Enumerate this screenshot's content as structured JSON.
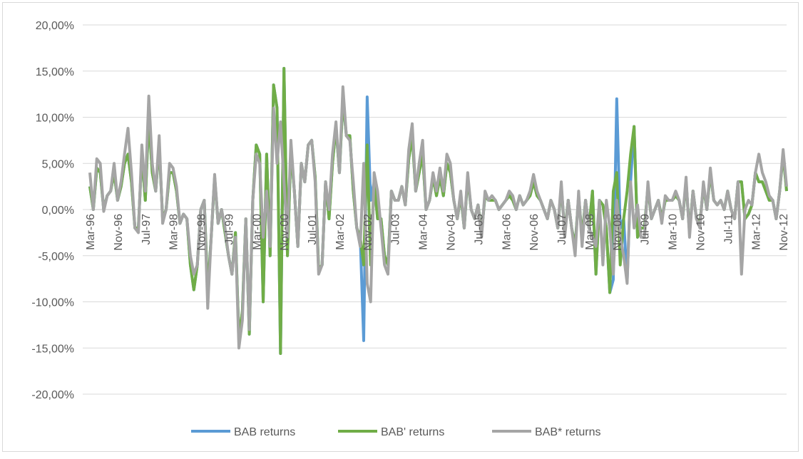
{
  "chart_data": {
    "type": "line",
    "categories": [
      "Mar-96",
      null,
      null,
      null,
      null,
      null,
      null,
      null,
      "Nov-96",
      null,
      null,
      null,
      null,
      null,
      null,
      null,
      "Jul-97",
      null,
      null,
      null,
      null,
      null,
      null,
      null,
      "Mar-98",
      null,
      null,
      null,
      null,
      null,
      null,
      null,
      "Nov-98",
      null,
      null,
      null,
      null,
      null,
      null,
      null,
      "Jul-99",
      null,
      null,
      null,
      null,
      null,
      null,
      null,
      "Mar-00",
      null,
      null,
      null,
      null,
      null,
      null,
      null,
      "Nov-00",
      null,
      null,
      null,
      null,
      null,
      null,
      null,
      "Jul-01",
      null,
      null,
      null,
      null,
      null,
      null,
      null,
      "Mar-02",
      null,
      null,
      null,
      null,
      null,
      null,
      null,
      "Nov-02",
      null,
      null,
      null,
      null,
      null,
      null,
      null,
      "Jul-03",
      null,
      null,
      null,
      null,
      null,
      null,
      null,
      "Mar-04",
      null,
      null,
      null,
      null,
      null,
      null,
      null,
      "Nov-04",
      null,
      null,
      null,
      null,
      null,
      null,
      null,
      "Jul-05",
      null,
      null,
      null,
      null,
      null,
      null,
      null,
      "Mar-06",
      null,
      null,
      null,
      null,
      null,
      null,
      null,
      "Nov-06",
      null,
      null,
      null,
      null,
      null,
      null,
      null,
      "Jul-07",
      null,
      null,
      null,
      null,
      null,
      null,
      null,
      "Mar-08",
      null,
      null,
      null,
      null,
      null,
      null,
      null,
      "Nov-08",
      null,
      null,
      null,
      null,
      null,
      null,
      null,
      "Jul-09",
      null,
      null,
      null,
      null,
      null,
      null,
      null,
      "Mar-10",
      null,
      null,
      null,
      null,
      null,
      null,
      null,
      "Nov-10",
      null,
      null,
      null,
      null,
      null,
      null,
      null,
      "Jul-11",
      null,
      null,
      null,
      null,
      null,
      null,
      null,
      "Mar-12",
      null,
      null,
      null,
      null,
      null,
      null,
      null,
      "Nov-12",
      null
    ],
    "series": [
      {
        "name": "BAB returns",
        "color": "#5b9bd5",
        "values": [
          2.5,
          0,
          4.5,
          4,
          0,
          1.5,
          2,
          4,
          1,
          2.5,
          5,
          6,
          3,
          -2,
          -2,
          6,
          1,
          10,
          4,
          2,
          7,
          -1,
          0,
          4,
          4,
          2,
          -1.5,
          -0.5,
          -1,
          -6,
          -8.7,
          -6,
          0,
          1,
          -9,
          -3,
          3.5,
          -1.5,
          0,
          -2.5,
          -5,
          -7,
          -2.5,
          -14,
          -11,
          -1,
          -13.5,
          1,
          7,
          6,
          -10,
          6,
          -5,
          13.5,
          11,
          -15.6,
          15.3,
          -5,
          6.5,
          2,
          -4,
          5,
          3,
          7,
          7.5,
          3.5,
          -6.5,
          -6,
          3,
          -1,
          5,
          9,
          4,
          12,
          8,
          8,
          2,
          -2,
          -3,
          -14.2,
          12.2,
          1,
          3,
          -1,
          -1,
          -5,
          -6,
          2,
          1,
          1,
          2.5,
          0.5,
          5.5,
          8,
          2,
          4,
          6,
          0,
          1,
          3.5,
          1.5,
          3.5,
          1.5,
          5,
          4,
          1,
          -1,
          1.5,
          -2,
          3.5,
          0,
          -1,
          0.5,
          -2.5,
          1.5,
          1,
          1,
          1,
          0,
          0.5,
          1,
          1.5,
          1,
          0,
          1.5,
          0.5,
          1,
          1.5,
          3,
          1.5,
          1,
          0,
          -1,
          1,
          0,
          -2,
          2.5,
          -2.5,
          1,
          -2,
          -4,
          1.5,
          -3,
          1,
          -2,
          2,
          -7,
          1,
          0.5,
          -2,
          -9,
          -7.6,
          12,
          -2,
          -1,
          -7.8,
          3,
          9,
          -3,
          -2,
          -2,
          2.5,
          -1,
          0,
          1,
          -1,
          1,
          1,
          1,
          1.5,
          1,
          -1,
          3,
          -2.5,
          2,
          -1,
          -1.5,
          2.5,
          0,
          4,
          1,
          0.5,
          1,
          0,
          2,
          0,
          -1,
          3,
          3,
          -1,
          -0.5,
          0.5,
          4,
          3,
          3,
          2,
          1,
          1,
          -1,
          2,
          6,
          2
        ]
      },
      {
        "name": "BAB' returns",
        "color": "#70ad47",
        "values": [
          2.5,
          0,
          4.5,
          4,
          0,
          1.5,
          2,
          4,
          1,
          2.5,
          5,
          6,
          3,
          -2,
          -2,
          6,
          1,
          10,
          4,
          2,
          7,
          -1,
          0,
          4,
          4,
          2,
          -1.5,
          -0.5,
          -1,
          -6,
          -8.7,
          -6,
          0,
          1,
          -9,
          -3,
          3.5,
          -1.5,
          0,
          -2.5,
          -5,
          -7,
          -2.5,
          -14,
          -11,
          -1,
          -13.5,
          1,
          7,
          6,
          -10,
          6,
          -5,
          13.5,
          11,
          -15.6,
          15.3,
          -5,
          6.5,
          2,
          -4,
          5,
          3,
          7,
          7.5,
          3.5,
          -6.5,
          -6,
          3,
          -1,
          5,
          9,
          4,
          12,
          8,
          8,
          2,
          -2,
          -3,
          -6,
          7,
          -6,
          3,
          -1,
          -1,
          -5,
          -6,
          2,
          1,
          1,
          2.5,
          0.5,
          5.5,
          8,
          2,
          4,
          6,
          0,
          1,
          3.5,
          1.5,
          3.5,
          1.5,
          5,
          4,
          1,
          -1,
          1.5,
          -2,
          3.5,
          0,
          -1,
          0.5,
          -2.5,
          1.5,
          1,
          1,
          1,
          0,
          0.5,
          1,
          1.5,
          1,
          0,
          1.5,
          0.5,
          1,
          1.5,
          3,
          1.5,
          1,
          0,
          -1,
          1,
          0,
          -2,
          2.5,
          -2.5,
          1,
          -2,
          -4,
          1.5,
          -3,
          1,
          -2,
          2,
          -7,
          1,
          0.5,
          -2,
          -9,
          2,
          4,
          -6,
          -1,
          2,
          6,
          9,
          -3,
          -2,
          -2,
          2.5,
          -1,
          0,
          1,
          -1,
          1,
          1,
          1,
          1.5,
          1,
          -1,
          3,
          -2.5,
          2,
          -1,
          -1.5,
          2.5,
          0,
          4,
          1,
          0.5,
          1,
          0,
          2,
          0,
          -1,
          3,
          3,
          -1,
          -0.5,
          0.5,
          4,
          3,
          3,
          2,
          1,
          1,
          -1,
          2,
          6,
          2
        ]
      },
      {
        "name": "BAB* returns",
        "color": "#a5a5a5",
        "values": [
          4,
          0,
          5.5,
          5,
          -0.2,
          1.5,
          2,
          5,
          1,
          3,
          6,
          8.8,
          4,
          -2,
          -2.5,
          7,
          2,
          12.3,
          5,
          2,
          8,
          -1.5,
          0,
          5,
          4.5,
          2.5,
          -1.5,
          -0.5,
          -1,
          -5,
          -7,
          -6,
          0,
          1,
          -10.7,
          -3,
          3.8,
          -1.5,
          0,
          -2,
          -5,
          -7,
          -3,
          -15,
          -12,
          -1,
          -13,
          1,
          6,
          5,
          -3,
          2,
          -4,
          11,
          5,
          9.5,
          3,
          -3,
          7.5,
          2,
          -4,
          5,
          3,
          7,
          7.5,
          3,
          -7,
          -6,
          3,
          0,
          6,
          9.5,
          4,
          13.3,
          8,
          7.5,
          3,
          -2,
          -4,
          5,
          -8,
          -10,
          4,
          2,
          -2,
          -6,
          -7,
          2,
          1,
          1,
          2.5,
          0.5,
          6.5,
          9.3,
          2,
          5,
          7.5,
          0,
          1,
          4,
          2,
          4.5,
          2,
          6,
          5,
          1,
          -1,
          2,
          -2,
          4,
          0,
          -1,
          0.5,
          -3,
          2,
          1,
          1.5,
          1,
          0,
          0.5,
          1,
          2,
          1.5,
          0,
          1.5,
          0.5,
          1,
          2,
          3.8,
          2,
          1,
          0,
          -1,
          1,
          0,
          -2,
          3,
          -3,
          1,
          -2,
          -5,
          2,
          -4,
          1,
          -2,
          -3,
          -4,
          1,
          -6,
          1,
          -2,
          -7,
          1,
          -3,
          -5,
          -8,
          3,
          -2,
          0.5,
          -3,
          -3,
          3,
          -1,
          0,
          1,
          -1.5,
          1.5,
          1,
          1,
          2,
          1,
          -1,
          3.5,
          -3,
          2,
          -1,
          -2,
          3,
          0,
          4.5,
          1,
          0.5,
          1,
          0,
          2,
          0,
          -1,
          3,
          -7,
          0,
          1,
          0.5,
          4,
          6,
          4,
          3,
          1.5,
          1,
          -1,
          2,
          6.5,
          2.5
        ]
      }
    ],
    "ylim": [
      -20,
      20
    ],
    "yticks": [
      {
        "value": -20,
        "label": "-20,00%"
      },
      {
        "value": -15,
        "label": "-15,00%"
      },
      {
        "value": -10,
        "label": "-10,00%"
      },
      {
        "value": -5,
        "label": "-5,00%"
      },
      {
        "value": 0,
        "label": "0,00%"
      },
      {
        "value": 5,
        "label": "5,00%"
      },
      {
        "value": 10,
        "label": "10,00%"
      },
      {
        "value": 15,
        "label": "15,00%"
      },
      {
        "value": 20,
        "label": "20,00%"
      }
    ],
    "grid": true,
    "legend": "bottom"
  }
}
